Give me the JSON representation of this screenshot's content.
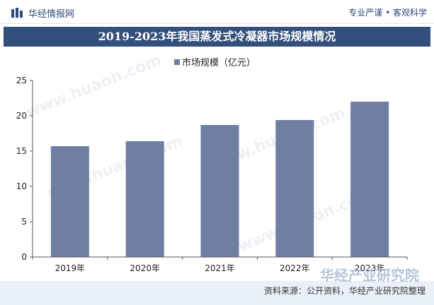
{
  "header": {
    "site_name": "华经情报网",
    "slogan": "专业严谨 • 客观科学"
  },
  "chart_data": {
    "type": "bar",
    "title": "2019-2023年我国蒸发式冷凝器市场规模情况",
    "categories": [
      "2019年",
      "2020年",
      "2021年",
      "2022年",
      "2023年"
    ],
    "series": [
      {
        "name": "市场规模（亿元）",
        "values": [
          15.7,
          16.4,
          18.7,
          19.4,
          22.0
        ]
      }
    ],
    "ylim": [
      0,
      25
    ],
    "yticks": [
      0,
      5,
      10,
      15,
      20,
      25
    ],
    "grid": false,
    "legend_position": "top-center",
    "colors": {
      "bar": "#6e7fa3",
      "title_band": "#33507d"
    }
  },
  "footer": {
    "source": "资料来源：公开资料，华经产业研究院整理",
    "brand": "华经产业研究院"
  }
}
